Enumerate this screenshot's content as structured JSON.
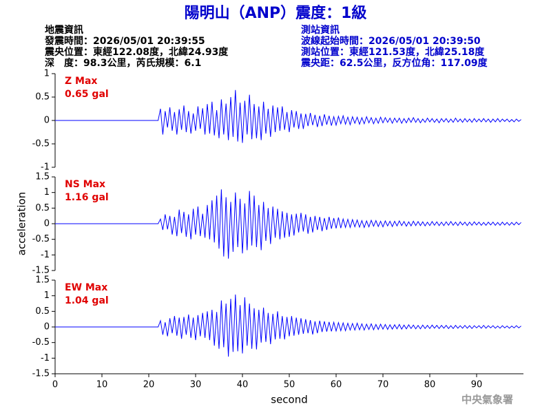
{
  "header": {
    "title": "陽明山（ANP）震度：1級",
    "quake_info": [
      "地震資訊",
      "發震時間：2026/05/01 20:39:55",
      "震央位置：東經122.08度，北緯24.93度",
      "深　度：98.3公里，芮氏規模：6.1"
    ],
    "station_info": [
      "測站資訊",
      "波線起始時間：2026/05/01 20:39:50",
      "測站位置：東經121.53度，北緯25.18度",
      "震央距：62.5公里，反方位角：117.09度"
    ]
  },
  "footer": "中央氣象署",
  "chart_data": [
    {
      "type": "line",
      "annotation": "Z Max",
      "max_label": "0.65 gal",
      "x": [
        0,
        22,
        22.5,
        23,
        23.5,
        24,
        24.5,
        25,
        25.5,
        26,
        26.5,
        27,
        27.5,
        28,
        28.5,
        29,
        29.5,
        30,
        30.5,
        31,
        31.5,
        32,
        32.5,
        33,
        33.5,
        34,
        34.5,
        35,
        35.5,
        36,
        36.5,
        37,
        37.5,
        38,
        38.5,
        39,
        39.5,
        40,
        40.5,
        41,
        41.5,
        42,
        42.5,
        43,
        43.5,
        44,
        44.5,
        45,
        45.5,
        46,
        46.5,
        47,
        47.5,
        48,
        48.5,
        49,
        49.5,
        50,
        50.5,
        51,
        51.5,
        52,
        52.5,
        53,
        53.5,
        54,
        54.5,
        55,
        55.5,
        56,
        56.5,
        57,
        57.5,
        58,
        58.5,
        59,
        59.5,
        60,
        60.5,
        61,
        61.5,
        62,
        62.5,
        63,
        63.5,
        64,
        64.5,
        65,
        65.5,
        66,
        66.5,
        67,
        67.5,
        68,
        68.5,
        69,
        69.5,
        70,
        70.5,
        71,
        71.5,
        72,
        72.5,
        73,
        73.5,
        74,
        74.5,
        75,
        75.5,
        76,
        76.5,
        77,
        77.5,
        78,
        78.5,
        79,
        79.5,
        80,
        80.5,
        81,
        81.5,
        82,
        82.5,
        83,
        83.5,
        84,
        84.5,
        85,
        85.5,
        86,
        86.5,
        87,
        87.5,
        88,
        88.5,
        89,
        89.5,
        90,
        90.5,
        91,
        91.5,
        92,
        92.5,
        93,
        93.5,
        94,
        94.5,
        95,
        95.5,
        96,
        96.5,
        97,
        97.5,
        98,
        98.5,
        99,
        99.5
      ],
      "series": [
        {
          "color": "#0000ff",
          "values": [
            0,
            0,
            0.25,
            -0.3,
            0.2,
            -0.15,
            0.28,
            -0.22,
            0.18,
            -0.3,
            0.24,
            -0.2,
            0.32,
            -0.25,
            0.2,
            -0.28,
            0.15,
            -0.22,
            0.3,
            -0.18,
            0.26,
            -0.3,
            0.35,
            -0.28,
            0.4,
            -0.32,
            0.22,
            -0.38,
            0.45,
            -0.3,
            0.36,
            -0.42,
            0.5,
            -0.35,
            0.65,
            -0.45,
            0.38,
            -0.48,
            0.42,
            -0.3,
            0.55,
            -0.4,
            0.35,
            -0.38,
            0.3,
            -0.42,
            0.4,
            -0.28,
            0.25,
            -0.35,
            0.32,
            -0.25,
            0.28,
            -0.22,
            0.3,
            -0.2,
            0.18,
            -0.25,
            0.22,
            -0.15,
            0.2,
            -0.18,
            0.15,
            -0.18,
            0.14,
            -0.12,
            0.16,
            -0.1,
            0.12,
            -0.14,
            0.1,
            -0.12,
            0.13,
            -0.09,
            0.1,
            -0.11,
            0.08,
            -0.1,
            0.09,
            -0.07,
            0.1,
            -0.08,
            0.07,
            -0.09,
            0.08,
            -0.06,
            0.07,
            -0.08,
            0.06,
            -0.07,
            0.08,
            -0.05,
            0.06,
            -0.07,
            0.05,
            -0.06,
            0.07,
            -0.05,
            0.06,
            -0.04,
            0.05,
            -0.06,
            0.05,
            -0.04,
            0.05,
            -0.06,
            0.04,
            -0.05,
            0.05,
            -0.04,
            0.06,
            -0.04,
            0.04,
            -0.05,
            0.03,
            -0.04,
            0.05,
            -0.03,
            0.04,
            -0.04,
            0.03,
            -0.05,
            0.04,
            -0.03,
            0.04,
            -0.04,
            0.03,
            -0.04,
            0.05,
            -0.03,
            0.03,
            -0.04,
            0.04,
            -0.03,
            0.03,
            -0.04,
            0.04,
            -0.03,
            0.03,
            -0.03,
            0.04,
            -0.03,
            0.03,
            -0.04,
            0.03,
            -0.03,
            0.04,
            -0.03,
            0.03,
            -0.02,
            0.03,
            -0.03,
            0.02,
            -0.03,
            0.03,
            -0.02,
            0.02
          ]
        }
      ],
      "xlim": [
        0,
        100
      ],
      "ylim": [
        -1,
        1
      ],
      "yticks": [
        -1,
        -0.5,
        0,
        0.5,
        1
      ]
    },
    {
      "type": "line",
      "annotation": "NS Max",
      "max_label": "1.16 gal",
      "ylabel": "acceleration",
      "x": [
        0,
        22,
        22.5,
        23,
        23.5,
        24,
        24.5,
        25,
        25.5,
        26,
        26.5,
        27,
        27.5,
        28,
        28.5,
        29,
        29.5,
        30,
        30.5,
        31,
        31.5,
        32,
        32.5,
        33,
        33.5,
        34,
        34.5,
        35,
        35.5,
        36,
        36.5,
        37,
        37.5,
        38,
        38.5,
        39,
        39.5,
        40,
        40.5,
        41,
        41.5,
        42,
        42.5,
        43,
        43.5,
        44,
        44.5,
        45,
        45.5,
        46,
        46.5,
        47,
        47.5,
        48,
        48.5,
        49,
        49.5,
        50,
        50.5,
        51,
        51.5,
        52,
        52.5,
        53,
        53.5,
        54,
        54.5,
        55,
        55.5,
        56,
        56.5,
        57,
        57.5,
        58,
        58.5,
        59,
        59.5,
        60,
        60.5,
        61,
        61.5,
        62,
        62.5,
        63,
        63.5,
        64,
        64.5,
        65,
        65.5,
        66,
        66.5,
        67,
        67.5,
        68,
        68.5,
        69,
        69.5,
        70,
        70.5,
        71,
        71.5,
        72,
        72.5,
        73,
        73.5,
        74,
        74.5,
        75,
        75.5,
        76,
        76.5,
        77,
        77.5,
        78,
        78.5,
        79,
        79.5,
        80,
        80.5,
        81,
        81.5,
        82,
        82.5,
        83,
        83.5,
        84,
        84.5,
        85,
        85.5,
        86,
        86.5,
        87,
        87.5,
        88,
        88.5,
        89,
        89.5,
        90,
        90.5,
        91,
        91.5,
        92,
        92.5,
        93,
        93.5,
        94,
        94.5,
        95,
        95.5,
        96,
        96.5,
        97,
        97.5,
        98,
        98.5,
        99,
        99.5
      ],
      "series": [
        {
          "color": "#0000ff",
          "values": [
            0,
            0,
            0.15,
            -0.2,
            0.3,
            -0.18,
            0.25,
            -0.35,
            0.22,
            -0.4,
            0.45,
            -0.3,
            0.38,
            -0.42,
            0.3,
            -0.5,
            0.48,
            -0.35,
            0.55,
            -0.4,
            0.32,
            -0.45,
            0.6,
            -0.5,
            0.75,
            -0.6,
            0.9,
            -0.8,
            1.1,
            -1.05,
            0.85,
            -1.12,
            0.7,
            -0.9,
            1.0,
            -0.75,
            0.8,
            -0.95,
            0.65,
            -0.85,
            1.05,
            -0.7,
            0.9,
            -0.75,
            0.6,
            -0.85,
            0.7,
            -0.55,
            0.5,
            -0.65,
            0.55,
            -0.45,
            0.48,
            -0.5,
            0.4,
            -0.45,
            0.35,
            -0.42,
            0.3,
            -0.38,
            0.32,
            -0.28,
            0.35,
            -0.25,
            0.3,
            -0.32,
            0.22,
            -0.28,
            0.25,
            -0.2,
            0.22,
            -0.24,
            0.18,
            -0.2,
            0.22,
            -0.16,
            0.18,
            -0.15,
            0.2,
            -0.14,
            0.15,
            -0.12,
            0.14,
            -0.12,
            0.13,
            -0.1,
            0.12,
            -0.11,
            0.1,
            -0.12,
            0.09,
            -0.1,
            0.11,
            -0.08,
            0.1,
            -0.09,
            0.08,
            -0.1,
            0.09,
            -0.07,
            0.08,
            -0.09,
            0.08,
            -0.07,
            0.09,
            -0.06,
            0.07,
            -0.08,
            0.06,
            -0.07,
            0.08,
            -0.06,
            0.07,
            -0.06,
            0.06,
            -0.07,
            0.05,
            -0.06,
            0.07,
            -0.05,
            0.06,
            -0.06,
            0.05,
            -0.06,
            0.06,
            -0.05,
            0.07,
            -0.05,
            0.05,
            -0.06,
            0.06,
            -0.04,
            0.05,
            -0.06,
            0.05,
            -0.05,
            0.06,
            -0.04,
            0.05,
            -0.05,
            0.04,
            -0.05,
            0.05,
            -0.04,
            0.05,
            -0.05,
            0.04,
            -0.05,
            0.05,
            -0.04,
            0.04,
            -0.05,
            0.04,
            -0.04,
            0.05,
            -0.03,
            0.04
          ]
        }
      ],
      "xlim": [
        0,
        100
      ],
      "ylim": [
        -1.5,
        1.5
      ],
      "yticks": [
        -1.5,
        -1,
        -0.5,
        0,
        0.5,
        1,
        1.5
      ]
    },
    {
      "type": "line",
      "annotation": "EW Max",
      "max_label": "1.04 gal",
      "xlabel": "second",
      "x": [
        0,
        22,
        22.5,
        23,
        23.5,
        24,
        24.5,
        25,
        25.5,
        26,
        26.5,
        27,
        27.5,
        28,
        28.5,
        29,
        29.5,
        30,
        30.5,
        31,
        31.5,
        32,
        32.5,
        33,
        33.5,
        34,
        34.5,
        35,
        35.5,
        36,
        36.5,
        37,
        37.5,
        38,
        38.5,
        39,
        39.5,
        40,
        40.5,
        41,
        41.5,
        42,
        42.5,
        43,
        43.5,
        44,
        44.5,
        45,
        45.5,
        46,
        46.5,
        47,
        47.5,
        48,
        48.5,
        49,
        49.5,
        50,
        50.5,
        51,
        51.5,
        52,
        52.5,
        53,
        53.5,
        54,
        54.5,
        55,
        55.5,
        56,
        56.5,
        57,
        57.5,
        58,
        58.5,
        59,
        59.5,
        60,
        60.5,
        61,
        61.5,
        62,
        62.5,
        63,
        63.5,
        64,
        64.5,
        65,
        65.5,
        66,
        66.5,
        67,
        67.5,
        68,
        68.5,
        69,
        69.5,
        70,
        70.5,
        71,
        71.5,
        72,
        72.5,
        73,
        73.5,
        74,
        74.5,
        75,
        75.5,
        76,
        76.5,
        77,
        77.5,
        78,
        78.5,
        79,
        79.5,
        80,
        80.5,
        81,
        81.5,
        82,
        82.5,
        83,
        83.5,
        84,
        84.5,
        85,
        85.5,
        86,
        86.5,
        87,
        87.5,
        88,
        88.5,
        89,
        89.5,
        90,
        90.5,
        91,
        91.5,
        92,
        92.5,
        93,
        93.5,
        94,
        94.5,
        95,
        95.5,
        96,
        96.5,
        97,
        97.5,
        98,
        98.5,
        99,
        99.5
      ],
      "series": [
        {
          "color": "#0000ff",
          "values": [
            0,
            0,
            0.2,
            -0.25,
            0.15,
            -0.3,
            0.28,
            -0.2,
            0.35,
            -0.28,
            0.3,
            -0.38,
            0.32,
            -0.25,
            0.4,
            -0.35,
            0.3,
            -0.42,
            0.38,
            -0.3,
            0.45,
            -0.35,
            0.5,
            -0.42,
            0.55,
            -0.6,
            0.48,
            -0.7,
            0.85,
            -0.65,
            0.75,
            -0.95,
            0.9,
            -0.8,
            1.04,
            -0.78,
            0.7,
            -0.85,
            0.95,
            -0.6,
            0.75,
            -0.7,
            0.6,
            -0.72,
            0.55,
            -0.5,
            0.62,
            -0.48,
            0.45,
            -0.55,
            0.42,
            -0.4,
            0.5,
            -0.38,
            0.35,
            -0.4,
            0.32,
            -0.3,
            0.35,
            -0.28,
            0.3,
            -0.25,
            0.28,
            -0.22,
            0.25,
            -0.2,
            0.22,
            -0.24,
            0.18,
            -0.2,
            0.2,
            -0.16,
            0.18,
            -0.15,
            0.16,
            -0.14,
            0.15,
            -0.13,
            0.14,
            -0.12,
            0.13,
            -0.12,
            0.12,
            -0.1,
            0.11,
            -0.1,
            0.12,
            -0.09,
            0.1,
            -0.1,
            0.09,
            -0.08,
            0.1,
            -0.09,
            0.08,
            -0.08,
            0.09,
            -0.07,
            0.08,
            -0.08,
            0.07,
            -0.07,
            0.07,
            -0.06,
            0.08,
            -0.07,
            0.06,
            -0.06,
            0.07,
            -0.05,
            0.06,
            -0.06,
            0.05,
            -0.06,
            0.06,
            -0.05,
            0.05,
            -0.05,
            0.06,
            -0.04,
            0.05,
            -0.05,
            0.05,
            -0.04,
            0.05,
            -0.05,
            0.04,
            -0.05,
            0.05,
            -0.04,
            0.04,
            -0.04,
            0.05,
            -0.04,
            0.04,
            -0.05,
            0.04,
            -0.03,
            0.04,
            -0.04,
            0.05,
            -0.04,
            0.04,
            -0.03,
            0.04,
            -0.04,
            0.03,
            -0.04,
            0.04,
            -0.03,
            0.03,
            -0.04,
            0.03,
            -0.03,
            0.04,
            -0.03,
            0.03
          ]
        }
      ],
      "xlim": [
        0,
        100
      ],
      "ylim": [
        -1.5,
        1.5
      ],
      "yticks": [
        -1.5,
        -1,
        -0.5,
        0,
        0.5,
        1,
        1.5
      ],
      "xticks": [
        0,
        10,
        20,
        30,
        40,
        50,
        60,
        70,
        80,
        90
      ]
    }
  ]
}
